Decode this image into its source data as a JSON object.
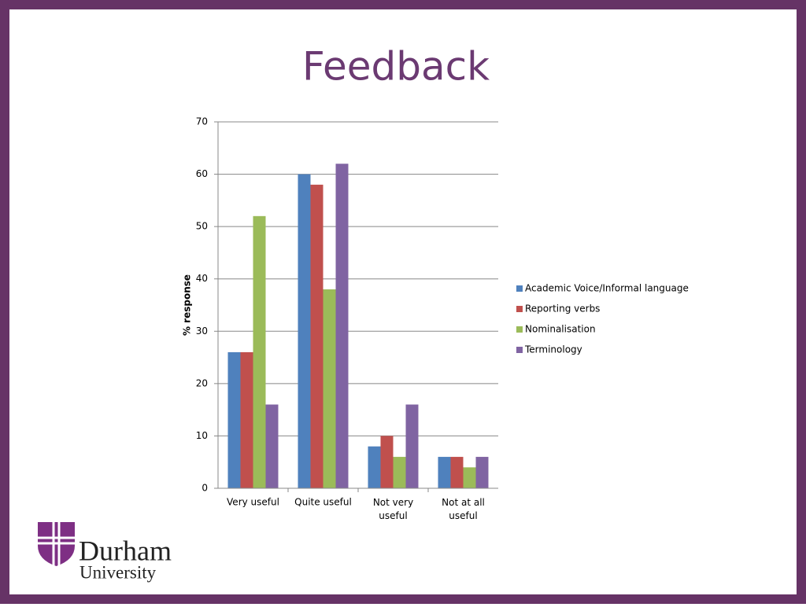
{
  "chart_data": {
    "type": "bar",
    "title": "Feedback",
    "y_label": "% response",
    "categories": [
      "Very useful",
      "Quite useful",
      "Not very useful",
      "Not at all useful"
    ],
    "series": [
      {
        "name": "Academic Voice/Informal language",
        "color": "#4f81bd",
        "values": [
          26,
          60,
          8,
          6
        ]
      },
      {
        "name": "Reporting verbs",
        "color": "#c0504d",
        "values": [
          26,
          58,
          10,
          6
        ]
      },
      {
        "name": "Nominalisation",
        "color": "#9bbb59",
        "values": [
          52,
          38,
          6,
          4
        ]
      },
      {
        "name": "Terminology",
        "color": "#8064a2",
        "values": [
          16,
          62,
          16,
          6
        ]
      }
    ],
    "ylim": [
      0,
      70
    ],
    "yticks": [
      0,
      10,
      20,
      30,
      40,
      50,
      60,
      70
    ],
    "grid": true,
    "legend": "right"
  },
  "logo": {
    "name": "Durham",
    "subtitle": "University"
  }
}
